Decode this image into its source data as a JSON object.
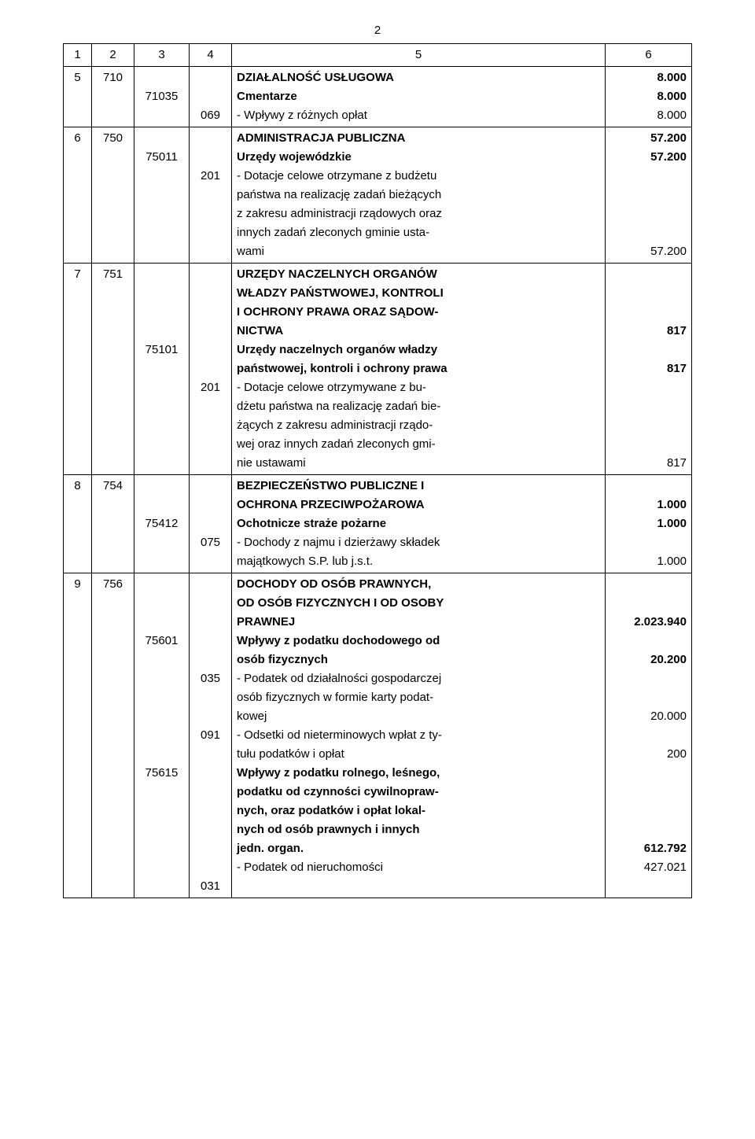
{
  "page_number": "2",
  "headers": [
    "1",
    "2",
    "3",
    "4",
    "5",
    "6"
  ],
  "rows": [
    {
      "c1": "5",
      "c2": "710",
      "c3": "\n71035",
      "c4": "\n\n069",
      "c5": [
        {
          "t": "DZIAŁALNOŚĆ USŁUGOWA",
          "b": true
        },
        {
          "t": "Cmentarze",
          "b": true
        },
        {
          "t": "- Wpływy z różnych opłat"
        }
      ],
      "c6": [
        {
          "t": "8.000",
          "b": true
        },
        {
          "t": "8.000",
          "b": true
        },
        {
          "t": "8.000"
        }
      ]
    },
    {
      "c1": "6",
      "c2": "750",
      "c3": "\n75011",
      "c4": "\n\n201",
      "c5": [
        {
          "t": "ADMINISTRACJA PUBLICZNA",
          "b": true
        },
        {
          "t": "Urzędy wojewódzkie",
          "b": true
        },
        {
          "t": "- Dotacje celowe otrzymane z budżetu"
        },
        {
          "t": "  państwa na realizację zadań bieżących"
        },
        {
          "t": "  z zakresu administracji rządowych oraz"
        },
        {
          "t": "  innych zadań zleconych gminie usta-"
        },
        {
          "t": "  wami"
        }
      ],
      "c6": [
        {
          "t": "57.200",
          "b": true
        },
        {
          "t": "57.200",
          "b": true
        },
        {
          "t": ""
        },
        {
          "t": ""
        },
        {
          "t": ""
        },
        {
          "t": ""
        },
        {
          "t": "57.200"
        }
      ]
    },
    {
      "c1": "7",
      "c2": "751",
      "c3": "\n\n\n\n75101",
      "c4": "\n\n\n\n\n\n201",
      "c5": [
        {
          "t": "URZĘDY NACZELNYCH ORGANÓW",
          "b": true
        },
        {
          "t": "WŁADZY PAŃSTWOWEJ, KONTROLI",
          "b": true
        },
        {
          "t": "I OCHRONY PRAWA ORAZ SĄDOW-",
          "b": true
        },
        {
          "t": "NICTWA",
          "b": true
        },
        {
          "t": "Urzędy naczelnych organów władzy",
          "b": true
        },
        {
          "t": "państwowej, kontroli i ochrony prawa",
          "b": true
        },
        {
          "t": "- Dotacje celowe otrzymywane z bu-"
        },
        {
          "t": "  dżetu państwa na realizację zadań bie-"
        },
        {
          "t": "  żących z zakresu administracji rządo-"
        },
        {
          "t": "  wej oraz innych zadań zleconych gmi-"
        },
        {
          "t": "  nie ustawami"
        }
      ],
      "c6": [
        {
          "t": ""
        },
        {
          "t": ""
        },
        {
          "t": ""
        },
        {
          "t": "817",
          "b": true
        },
        {
          "t": ""
        },
        {
          "t": "817",
          "b": true
        },
        {
          "t": ""
        },
        {
          "t": ""
        },
        {
          "t": ""
        },
        {
          "t": ""
        },
        {
          "t": "817"
        }
      ]
    },
    {
      "c1": "8",
      "c2": "754",
      "c3": "\n\n75412",
      "c4": "\n\n\n075",
      "c5": [
        {
          "t": "BEZPIECZEŃSTWO PUBLICZNE I",
          "b": true
        },
        {
          "t": "OCHRONA PRZECIWPOŻAROWA",
          "b": true
        },
        {
          "t": "Ochotnicze straże pożarne",
          "b": true
        },
        {
          "t": "- Dochody z najmu i dzierżawy składek"
        },
        {
          "t": "  majątkowych S.P. lub j.s.t."
        }
      ],
      "c6": [
        {
          "t": ""
        },
        {
          "t": "1.000",
          "b": true
        },
        {
          "t": "1.000",
          "b": true
        },
        {
          "t": ""
        },
        {
          "t": "1.000"
        }
      ]
    },
    {
      "c1": "9",
      "c2": "756",
      "c3": "\n\n\n75601\n\n\n\n\n\n\n75615",
      "c4": "\n\n\n\n\n035\n\n\n091\n\n\n\n\n\n\n\n031",
      "c5": [
        {
          "t": "DOCHODY OD OSÓB PRAWNYCH,",
          "b": true
        },
        {
          "t": "OD OSÓB FIZYCZNYCH I OD OSOBY",
          "b": true
        },
        {
          "t": "PRAWNEJ",
          "b": true
        },
        {
          "t": "Wpływy z podatku dochodowego od",
          "b": true
        },
        {
          "t": "osób fizycznych",
          "b": true
        },
        {
          "t": "- Podatek od działalności gospodarczej"
        },
        {
          "t": "  osób fizycznych w formie karty podat-"
        },
        {
          "t": "  kowej"
        },
        {
          "t": "- Odsetki od nieterminowych wpłat z ty-"
        },
        {
          "t": "  tułu podatków i opłat"
        },
        {
          "t": "Wpływy z podatku rolnego, leśnego,",
          "b": true
        },
        {
          "t": "podatku od czynności cywilnopraw-",
          "b": true
        },
        {
          "t": "nych, oraz podatków i opłat lokal-",
          "b": true
        },
        {
          "t": "nych od osób prawnych i innych",
          "b": true
        },
        {
          "t": "jedn. organ.",
          "b": true
        },
        {
          "t": "- Podatek od nieruchomości"
        }
      ],
      "c6": [
        {
          "t": ""
        },
        {
          "t": ""
        },
        {
          "t": "2.023.940",
          "b": true
        },
        {
          "t": ""
        },
        {
          "t": "20.200",
          "b": true
        },
        {
          "t": ""
        },
        {
          "t": ""
        },
        {
          "t": "20.000"
        },
        {
          "t": ""
        },
        {
          "t": "200"
        },
        {
          "t": ""
        },
        {
          "t": ""
        },
        {
          "t": ""
        },
        {
          "t": ""
        },
        {
          "t": "612.792",
          "b": true
        },
        {
          "t": "427.021"
        }
      ]
    }
  ]
}
